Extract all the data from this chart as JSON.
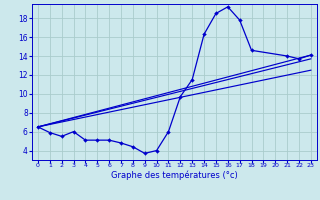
{
  "xlabel": "Graphe des températures (°c)",
  "ylabel": "",
  "background_color": "#cce8ec",
  "grid_color": "#aacccc",
  "line_color": "#0000cc",
  "xlim": [
    -0.5,
    23.5
  ],
  "ylim": [
    3.0,
    19.5
  ],
  "xticks": [
    0,
    1,
    2,
    3,
    4,
    5,
    6,
    7,
    8,
    9,
    10,
    11,
    12,
    13,
    14,
    15,
    16,
    17,
    18,
    19,
    20,
    21,
    22,
    23
  ],
  "yticks": [
    4,
    6,
    8,
    10,
    12,
    14,
    16,
    18
  ],
  "curve1_x": [
    0,
    1,
    2,
    3,
    4,
    5,
    6,
    7,
    8,
    9,
    10,
    11,
    12,
    13,
    14,
    15,
    16,
    17,
    18,
    21,
    22,
    23
  ],
  "curve1_y": [
    6.5,
    5.9,
    5.5,
    6.0,
    5.1,
    5.1,
    5.1,
    4.8,
    4.4,
    3.7,
    4.0,
    6.0,
    9.7,
    11.5,
    16.3,
    18.5,
    19.2,
    17.8,
    14.6,
    14.0,
    13.7,
    14.1
  ],
  "curve2_x": [
    0,
    23
  ],
  "curve2_y": [
    6.5,
    14.1
  ],
  "curve3_x": [
    0,
    23
  ],
  "curve3_y": [
    6.5,
    13.7
  ],
  "curve4_x": [
    0,
    23
  ],
  "curve4_y": [
    6.5,
    12.5
  ]
}
